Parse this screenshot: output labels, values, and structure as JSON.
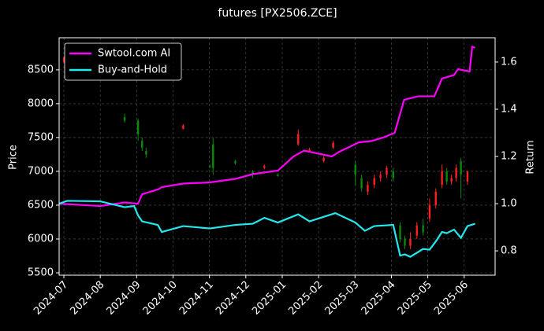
{
  "chart_data": {
    "type": "candlestick_returns",
    "title": "futures [PX2506.ZCE]",
    "ylabel": "Price",
    "y2label": "Return",
    "ylim": [
      5465,
      8975
    ],
    "yticks": [
      5500,
      6000,
      6500,
      7000,
      7500,
      8000,
      8500
    ],
    "y2lim": [
      0.697,
      1.703
    ],
    "y2ticks": [
      0.8,
      {
        "value": 1,
        "label": "1.0"
      },
      1.2,
      1.4,
      1.6
    ],
    "xlim": [
      -0.13,
      11.85
    ],
    "xticks": [
      {
        "value": 0,
        "label": "2024-07"
      },
      {
        "value": 1,
        "label": "2024-08"
      },
      {
        "value": 2,
        "label": "2024-09"
      },
      {
        "value": 3,
        "label": "2024-10"
      },
      {
        "value": 4,
        "label": "2024-11"
      },
      {
        "value": 5,
        "label": "2024-12"
      },
      {
        "value": 6,
        "label": "2025-01"
      },
      {
        "value": 7,
        "label": "2025-02"
      },
      {
        "value": 8,
        "label": "2025-03"
      },
      {
        "value": 9,
        "label": "2025-04"
      },
      {
        "value": 10,
        "label": "2025-05"
      },
      {
        "value": 11,
        "label": "2025-06"
      }
    ],
    "grid": true,
    "legend": "upper left",
    "up_color": "#ff2020",
    "down_color": "#0a8a0a",
    "candles": {
      "x": [
        0.0,
        1.67,
        2.04,
        2.15,
        2.26,
        3.28,
        4.01,
        4.1,
        4.71,
        5.19,
        5.51,
        5.88,
        6.44,
        6.75,
        7.14,
        7.4,
        8.01,
        8.18,
        8.35,
        8.53,
        8.7,
        8.87,
        9.05,
        9.24,
        9.37,
        9.52,
        9.7,
        9.87,
        10.05,
        10.22,
        10.39,
        10.52,
        10.65,
        10.78,
        10.91,
        11.09
      ],
      "open": [
        8620,
        7800,
        7750,
        7450,
        7300,
        7630,
        7080,
        7400,
        7150,
        7000,
        7050,
        6950,
        7400,
        7300,
        7150,
        7350,
        7100,
        6900,
        6700,
        6800,
        6900,
        6950,
        7000,
        6200,
        6000,
        5900,
        6050,
        6200,
        6300,
        6500,
        6800,
        7000,
        6850,
        6900,
        7150,
        6850
      ],
      "high": [
        8700,
        7850,
        7780,
        7500,
        7350,
        7700,
        7100,
        7500,
        7170,
        7020,
        7100,
        6970,
        7620,
        7350,
        7220,
        7450,
        7150,
        6950,
        6850,
        6950,
        7000,
        7080,
        7050,
        6250,
        6050,
        6100,
        6250,
        6300,
        6600,
        6750,
        7100,
        7050,
        6950,
        7100,
        7200,
        7010
      ],
      "low": [
        8600,
        7720,
        7450,
        7300,
        7200,
        7620,
        7050,
        6950,
        7100,
        6900,
        7030,
        6920,
        7380,
        7280,
        7130,
        7330,
        6800,
        6700,
        6650,
        6750,
        6850,
        6900,
        6850,
        5950,
        5850,
        5850,
        6000,
        6050,
        6250,
        6450,
        6750,
        6800,
        6800,
        6850,
        6600,
        6800
      ],
      "close": [
        8680,
        7750,
        7550,
        7350,
        7250,
        7680,
        7060,
        7050,
        7120,
        6950,
        7080,
        6930,
        7550,
        7320,
        7200,
        7420,
        6950,
        6750,
        6800,
        6900,
        6950,
        7050,
        6900,
        6000,
        5900,
        6000,
        6200,
        6100,
        6500,
        6700,
        7000,
        6850,
        6900,
        7050,
        6950,
        7000
      ]
    },
    "series": [
      {
        "name": "Swtool.com AI",
        "color": "#ff00ff",
        "axis": "y2",
        "x": [
          -0.13,
          1.0,
          1.67,
          2.04,
          2.15,
          2.58,
          2.69,
          3.28,
          4.01,
          4.71,
          5.19,
          5.88,
          6.31,
          6.6,
          7.36,
          7.57,
          8.11,
          8.44,
          8.77,
          9.09,
          9.35,
          9.74,
          10.18,
          10.39,
          10.72,
          10.83,
          11.15,
          11.22,
          11.3
        ],
        "values": [
          1.0,
          0.99,
          1.005,
          1.0,
          1.04,
          1.06,
          1.07,
          1.085,
          1.09,
          1.105,
          1.125,
          1.14,
          1.2,
          1.225,
          1.2,
          1.22,
          1.26,
          1.265,
          1.28,
          1.3,
          1.44,
          1.455,
          1.455,
          1.53,
          1.545,
          1.57,
          1.56,
          1.665,
          1.66
        ]
      },
      {
        "name": "Buy-and-Hold",
        "color": "#22e8f0",
        "axis": "y2",
        "x": [
          -0.13,
          0.09,
          1.0,
          1.67,
          1.93,
          2.04,
          2.15,
          2.58,
          2.69,
          3.28,
          4.01,
          4.71,
          5.19,
          5.51,
          5.88,
          6.44,
          6.75,
          7.36,
          7.46,
          8.01,
          8.27,
          8.53,
          9.05,
          9.24,
          9.37,
          9.52,
          9.87,
          10.05,
          10.22,
          10.39,
          10.52,
          10.72,
          10.91,
          11.09,
          11.3
        ],
        "values": [
          1.0,
          1.012,
          1.01,
          0.985,
          0.99,
          0.95,
          0.925,
          0.91,
          0.88,
          0.905,
          0.895,
          0.91,
          0.915,
          0.94,
          0.92,
          0.955,
          0.925,
          0.955,
          0.96,
          0.92,
          0.885,
          0.905,
          0.91,
          0.78,
          0.785,
          0.775,
          0.808,
          0.805,
          0.84,
          0.88,
          0.875,
          0.89,
          0.855,
          0.905,
          0.915
        ]
      }
    ]
  }
}
